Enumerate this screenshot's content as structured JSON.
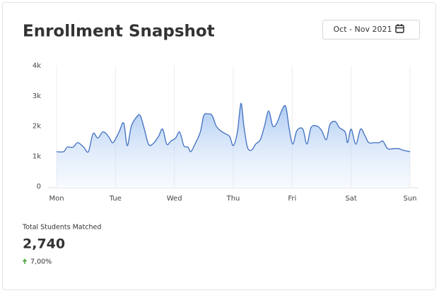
{
  "chart_data": {
    "type": "line",
    "title": "Enrollment Snapshot",
    "date_range": "Oct - Nov 2021",
    "x": [
      0,
      0.12,
      0.18,
      0.28,
      0.36,
      0.46,
      0.54,
      0.62,
      0.7,
      0.78,
      0.84,
      0.9,
      0.96,
      1.06,
      1.14,
      1.2,
      1.27,
      1.36,
      1.42,
      1.49,
      1.56,
      1.63,
      1.73,
      1.8,
      1.87,
      1.94,
      2.02,
      2.09,
      2.16,
      2.23,
      2.28,
      2.35,
      2.44,
      2.5,
      2.57,
      2.64,
      2.71,
      2.78,
      2.86,
      2.94,
      3,
      3.07,
      3.13,
      3.18,
      3.24,
      3.31,
      3.38,
      3.46,
      3.53,
      3.6,
      3.67,
      3.74,
      3.82,
      3.89,
      3.95,
      4.01,
      4.08,
      4.18,
      4.25,
      4.32,
      4.42,
      4.5,
      4.58,
      4.64,
      4.73,
      4.8,
      4.9,
      4.94,
      5,
      5.08,
      5.16,
      5.23,
      5.3,
      5.4,
      5.48,
      5.54,
      5.62,
      5.71,
      5.81,
      5.88,
      6
    ],
    "values": [
      1150,
      1150,
      1300,
      1300,
      1450,
      1300,
      1150,
      1750,
      1600,
      1800,
      1750,
      1600,
      1450,
      1800,
      2100,
      1350,
      2000,
      2300,
      2350,
      1900,
      1400,
      1400,
      1650,
      1900,
      1400,
      1500,
      1600,
      1800,
      1350,
      1300,
      1150,
      1400,
      1800,
      2350,
      2400,
      2350,
      2000,
      1850,
      1750,
      1650,
      1350,
      1800,
      2750,
      2000,
      1300,
      1200,
      1400,
      1550,
      2000,
      2500,
      2000,
      2100,
      2500,
      2650,
      1900,
      1400,
      1850,
      1900,
      1400,
      1950,
      2000,
      1850,
      1550,
      2050,
      2150,
      1950,
      1800,
      1450,
      1900,
      1400,
      1900,
      1700,
      1450,
      1450,
      1450,
      1500,
      1250,
      1250,
      1250,
      1200,
      1150
    ],
    "color": "#3f6fc0",
    "xlim": [
      0,
      6
    ],
    "xticks": [
      {
        "value": 0,
        "label": "Mon"
      },
      {
        "value": 1,
        "label": "Tue"
      },
      {
        "value": 2,
        "label": "Wed"
      },
      {
        "value": 3,
        "label": "Thu"
      },
      {
        "value": 4,
        "label": "Fri"
      },
      {
        "value": 5,
        "label": "Sat"
      },
      {
        "value": 6,
        "label": "Sun"
      }
    ],
    "ylim": [
      0,
      4000
    ],
    "yticks": [
      0,
      {
        "value": 1000,
        "label": "1k"
      },
      {
        "value": 2000,
        "label": "2k"
      },
      {
        "value": 3000,
        "label": "3k"
      },
      {
        "value": 4000,
        "label": "4k"
      }
    ],
    "grid": true
  },
  "summary": {
    "label": "Total Students Matched",
    "value": "2,740",
    "change": "7,00%"
  }
}
